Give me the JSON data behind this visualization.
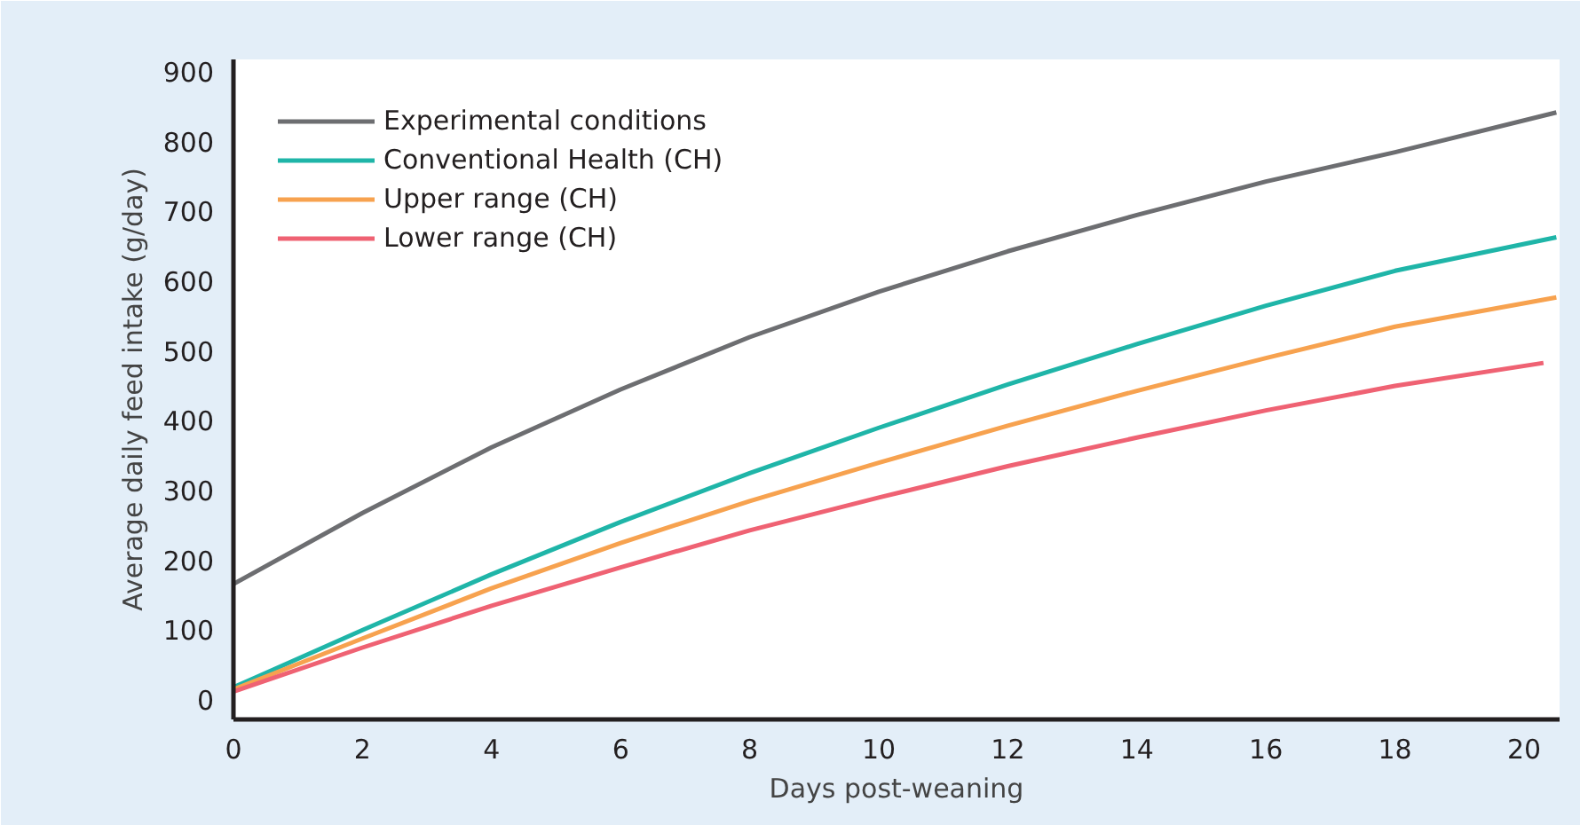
{
  "chart_data": {
    "type": "line",
    "xlabel": "Days post-weaning",
    "ylabel": "Average daily feed intake (g/day)",
    "xlim": [
      0,
      20.55
    ],
    "ylim": [
      -28,
      918
    ],
    "xticks": [
      0,
      2,
      4,
      6,
      8,
      10,
      12,
      14,
      16,
      18,
      20
    ],
    "yticks": [
      0,
      100,
      200,
      300,
      400,
      500,
      600,
      700,
      800,
      900
    ],
    "grid": false,
    "legend": "top left",
    "line_style": "solid",
    "series": [
      {
        "name": "Experimental conditions",
        "color": "#6d6e71",
        "x": [
          0,
          2,
          4,
          6,
          8,
          10,
          12,
          14,
          16,
          18,
          20.5
        ],
        "values": [
          166,
          268,
          362,
          445,
          520,
          585,
          643,
          695,
          743,
          785,
          842
        ]
      },
      {
        "name": "Conventional Health (CH)",
        "color": "#1fb5a8",
        "x": [
          0,
          2,
          4,
          6,
          8,
          10,
          12,
          14,
          16,
          18,
          20.5
        ],
        "values": [
          18,
          100,
          180,
          255,
          325,
          390,
          452,
          510,
          565,
          615,
          663
        ]
      },
      {
        "name": "Upper range (CH)",
        "color": "#f7a24f",
        "x": [
          0,
          2,
          4,
          6,
          8,
          10,
          12,
          14,
          16,
          18,
          20.5
        ],
        "values": [
          15,
          88,
          160,
          225,
          285,
          340,
          393,
          443,
          490,
          535,
          577
        ]
      },
      {
        "name": "Lower range (CH)",
        "color": "#ef6273",
        "x": [
          0,
          2,
          4,
          6,
          8,
          10,
          12,
          14,
          16,
          18,
          20.3
        ],
        "values": [
          12,
          75,
          135,
          190,
          243,
          290,
          335,
          376,
          415,
          450,
          483
        ]
      }
    ]
  }
}
